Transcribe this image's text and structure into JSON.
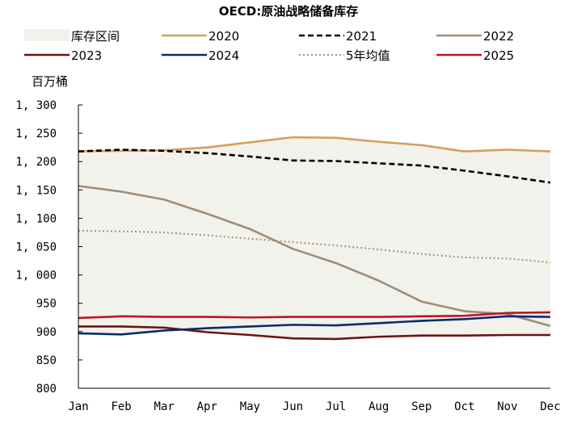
{
  "chart_data": {
    "type": "line",
    "title": "OECD:原油战略储备库存",
    "ylabel": "百万桶",
    "xlabel": "",
    "ylim": [
      800,
      1300
    ],
    "yticks": [
      800,
      850,
      900,
      950,
      1000,
      1050,
      1100,
      1150,
      1200,
      1250,
      1300
    ],
    "ytick_labels": [
      "800",
      "850",
      "900",
      "950",
      "1, 000",
      "1, 050",
      "1, 100",
      "1, 150",
      "1, 200",
      "1, 250",
      "1, 300"
    ],
    "categories": [
      "Jan",
      "Feb",
      "Mar",
      "Apr",
      "May",
      "Jun",
      "Jul",
      "Aug",
      "Sep",
      "Oct",
      "Nov",
      "Dec"
    ],
    "band": {
      "name": "库存区间",
      "color": "#f2f2ec",
      "lower": [
        897,
        895,
        902,
        899,
        894,
        888,
        887,
        891,
        893,
        893,
        894,
        894
      ],
      "upper": [
        1218,
        1220,
        1220,
        1225,
        1235,
        1243,
        1242,
        1235,
        1229,
        1218,
        1221,
        1218
      ]
    },
    "series": [
      {
        "name": "2020",
        "color": "#d4a05a",
        "dash": "solid",
        "values": [
          1218,
          1219,
          1220,
          1225,
          1234,
          1243,
          1242,
          1235,
          1229,
          1218,
          1221,
          1218
        ]
      },
      {
        "name": "2021",
        "color": "#000000",
        "dash": "dash",
        "values": [
          1218,
          1221,
          1219,
          1215,
          1209,
          1202,
          1201,
          1197,
          1193,
          1184,
          1174,
          1163
        ]
      },
      {
        "name": "2022",
        "color": "#a08c78",
        "dash": "solid",
        "values": [
          1157,
          1147,
          1133,
          1108,
          1081,
          1046,
          1021,
          990,
          953,
          936,
          931,
          910
        ]
      },
      {
        "name": "2023",
        "color": "#6b1414",
        "dash": "solid",
        "values": [
          909,
          909,
          907,
          899,
          894,
          888,
          887,
          891,
          893,
          893,
          894,
          894
        ]
      },
      {
        "name": "2024",
        "color": "#0f2a6b",
        "dash": "solid",
        "values": [
          897,
          895,
          902,
          906,
          909,
          912,
          911,
          915,
          919,
          922,
          927,
          926
        ]
      },
      {
        "name": "5年均值",
        "color": "#a89078",
        "dash": "dot",
        "values": [
          1078,
          1077,
          1075,
          1070,
          1064,
          1058,
          1052,
          1045,
          1037,
          1031,
          1029,
          1022
        ]
      },
      {
        "name": "2025",
        "color": "#c0141e",
        "dash": "solid",
        "values": [
          924,
          927,
          926,
          926,
          925,
          926,
          926,
          926,
          927,
          928,
          933,
          934
        ]
      }
    ],
    "legend": [
      "库存区间",
      "2020",
      "2021",
      "2022",
      "2023",
      "2024",
      "5年均值",
      "2025"
    ],
    "legend_position": "top",
    "grid": false
  }
}
